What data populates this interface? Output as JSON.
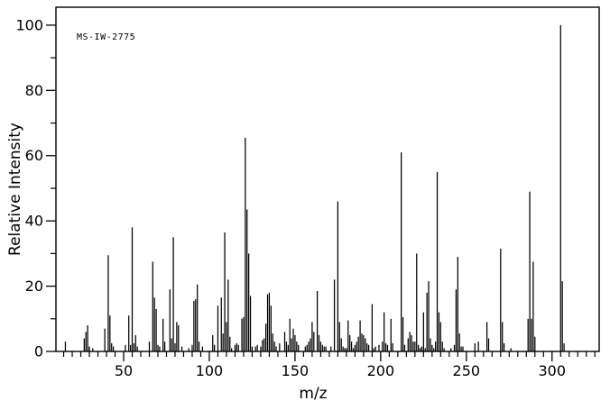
{
  "colors": {
    "background": "#ffffff",
    "ink": "#000000"
  },
  "chart_data": {
    "type": "bar",
    "subtype": "mass-spectrum",
    "annotation": "MS-IW-2775",
    "xlabel": "m/z",
    "ylabel": "Relative Intensity",
    "xlim": [
      10.5,
      327.5
    ],
    "ylim": [
      0,
      105.5
    ],
    "x_major_ticks": [
      50,
      100,
      150,
      200,
      250,
      300
    ],
    "x_minor_step": 5,
    "y_major_ticks": [
      0,
      20,
      40,
      60,
      80,
      100
    ],
    "y_minor_step": 10,
    "grid": "off",
    "legend": "none",
    "peaks": [
      [
        16,
        3
      ],
      [
        27,
        4
      ],
      [
        28,
        6
      ],
      [
        29,
        8
      ],
      [
        30,
        1.5
      ],
      [
        32,
        1
      ],
      [
        39,
        7
      ],
      [
        41,
        29.5
      ],
      [
        42,
        11
      ],
      [
        43,
        2.5
      ],
      [
        44,
        1.5
      ],
      [
        51,
        2
      ],
      [
        53,
        11
      ],
      [
        54,
        2
      ],
      [
        55,
        38
      ],
      [
        56,
        2.5
      ],
      [
        57,
        5
      ],
      [
        58,
        1.5
      ],
      [
        65,
        3
      ],
      [
        67,
        27.5
      ],
      [
        68,
        16.5
      ],
      [
        69,
        13
      ],
      [
        70,
        2
      ],
      [
        71,
        1.5
      ],
      [
        73,
        10
      ],
      [
        74,
        3
      ],
      [
        77,
        19
      ],
      [
        78,
        4
      ],
      [
        79,
        35
      ],
      [
        80,
        2.5
      ],
      [
        81,
        9
      ],
      [
        82,
        8
      ],
      [
        84,
        1.5
      ],
      [
        88,
        1
      ],
      [
        90,
        2
      ],
      [
        91,
        15.5
      ],
      [
        92,
        16
      ],
      [
        93,
        20.5
      ],
      [
        94,
        3
      ],
      [
        96,
        1.5
      ],
      [
        102,
        5
      ],
      [
        103,
        2
      ],
      [
        105,
        14
      ],
      [
        107,
        16.5
      ],
      [
        108,
        5.5
      ],
      [
        109,
        36.5
      ],
      [
        110,
        9
      ],
      [
        111,
        22
      ],
      [
        112,
        4.5
      ],
      [
        113,
        1
      ],
      [
        115,
        2
      ],
      [
        116,
        2.5
      ],
      [
        117,
        2
      ],
      [
        119,
        10
      ],
      [
        120,
        10.5
      ],
      [
        121,
        65.5
      ],
      [
        122,
        43.5
      ],
      [
        123,
        30
      ],
      [
        124,
        17
      ],
      [
        125,
        1.5
      ],
      [
        127,
        1.5
      ],
      [
        128,
        2
      ],
      [
        130,
        1.5
      ],
      [
        131,
        3.5
      ],
      [
        132,
        4
      ],
      [
        133,
        8.5
      ],
      [
        134,
        17.5
      ],
      [
        135,
        18
      ],
      [
        136,
        14
      ],
      [
        137,
        5.5
      ],
      [
        138,
        3
      ],
      [
        139,
        1.5
      ],
      [
        141,
        2.5
      ],
      [
        144,
        6
      ],
      [
        145,
        3
      ],
      [
        146,
        2
      ],
      [
        147,
        10
      ],
      [
        148,
        4
      ],
      [
        149,
        7
      ],
      [
        150,
        5
      ],
      [
        151,
        3
      ],
      [
        152,
        2
      ],
      [
        156,
        1.5
      ],
      [
        157,
        2
      ],
      [
        158,
        3
      ],
      [
        159,
        4
      ],
      [
        160,
        9
      ],
      [
        161,
        6
      ],
      [
        163,
        18.5
      ],
      [
        164,
        5
      ],
      [
        165,
        3
      ],
      [
        166,
        2
      ],
      [
        167,
        1.5
      ],
      [
        168,
        1.5
      ],
      [
        171,
        1.5
      ],
      [
        173,
        22
      ],
      [
        175,
        46
      ],
      [
        176,
        9
      ],
      [
        177,
        4
      ],
      [
        178,
        1.5
      ],
      [
        179,
        1
      ],
      [
        180,
        1
      ],
      [
        181,
        9.5
      ],
      [
        182,
        5
      ],
      [
        183,
        3
      ],
      [
        184,
        1
      ],
      [
        185,
        2
      ],
      [
        186,
        3
      ],
      [
        187,
        4.5
      ],
      [
        188,
        9.5
      ],
      [
        189,
        5.5
      ],
      [
        190,
        5
      ],
      [
        191,
        4
      ],
      [
        192,
        2.5
      ],
      [
        193,
        2
      ],
      [
        195,
        14.5
      ],
      [
        196,
        1
      ],
      [
        197,
        1.5
      ],
      [
        199,
        2
      ],
      [
        201,
        3
      ],
      [
        202,
        12
      ],
      [
        203,
        2.5
      ],
      [
        204,
        2
      ],
      [
        206,
        10
      ],
      [
        207,
        2.5
      ],
      [
        212,
        61
      ],
      [
        213,
        10.5
      ],
      [
        214,
        2
      ],
      [
        216,
        4
      ],
      [
        217,
        6
      ],
      [
        218,
        5
      ],
      [
        219,
        3
      ],
      [
        220,
        3
      ],
      [
        221,
        30
      ],
      [
        222,
        2
      ],
      [
        223,
        1
      ],
      [
        224,
        1.5
      ],
      [
        225,
        12
      ],
      [
        226,
        1
      ],
      [
        227,
        18
      ],
      [
        228,
        21.5
      ],
      [
        229,
        4
      ],
      [
        230,
        2
      ],
      [
        231,
        1
      ],
      [
        232,
        3
      ],
      [
        233,
        55
      ],
      [
        234,
        12
      ],
      [
        235,
        9
      ],
      [
        236,
        3
      ],
      [
        237,
        1
      ],
      [
        241,
        1
      ],
      [
        243,
        2
      ],
      [
        244,
        19
      ],
      [
        245,
        29
      ],
      [
        246,
        5.5
      ],
      [
        247,
        1.5
      ],
      [
        248,
        1.5
      ],
      [
        255,
        2.5
      ],
      [
        257,
        3
      ],
      [
        262,
        9
      ],
      [
        263,
        4
      ],
      [
        270,
        31.5
      ],
      [
        271,
        9
      ],
      [
        272,
        2.5
      ],
      [
        276,
        1
      ],
      [
        286,
        10
      ],
      [
        287,
        49
      ],
      [
        288,
        10
      ],
      [
        289,
        27.5
      ],
      [
        290,
        4.5
      ],
      [
        305,
        100
      ],
      [
        306,
        21.5
      ],
      [
        307,
        2.5
      ]
    ]
  }
}
